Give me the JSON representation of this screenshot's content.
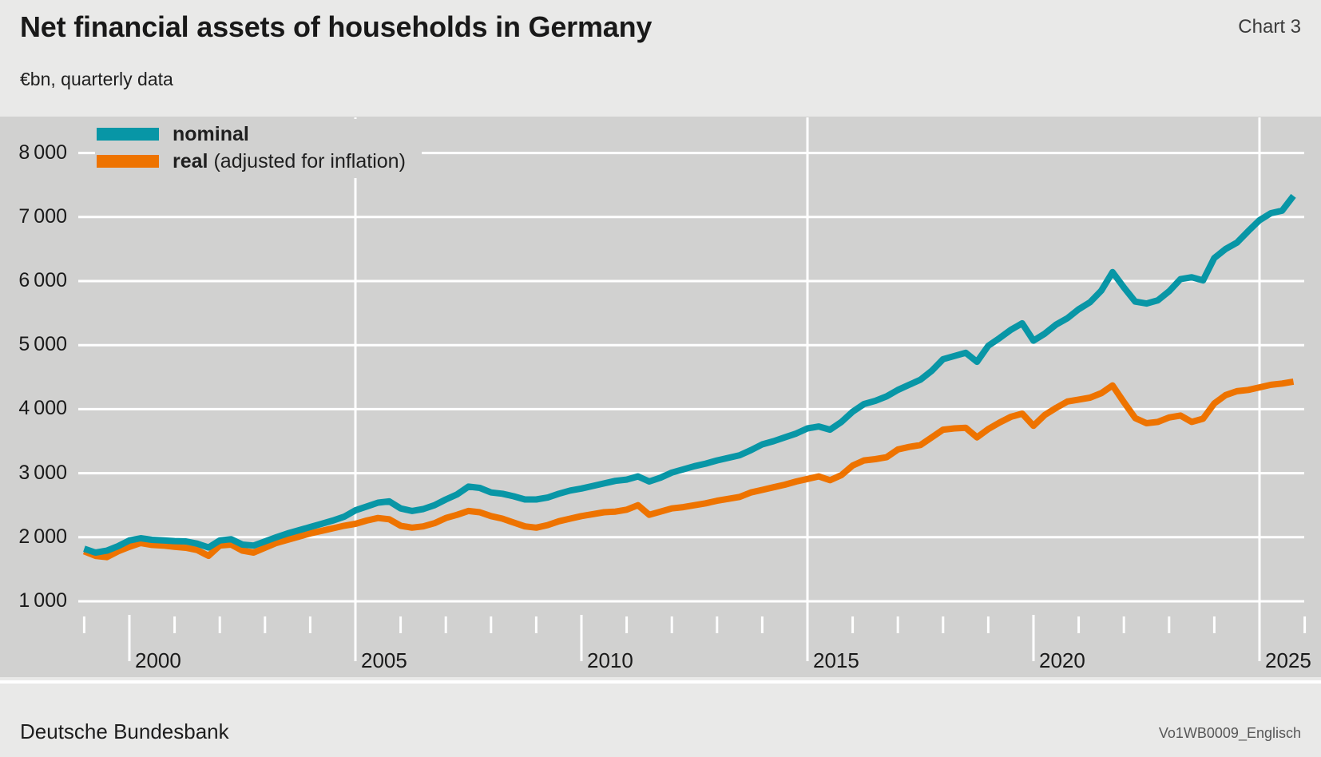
{
  "header": {
    "title": "Net financial assets of households in Germany",
    "chart_label": "Chart 3",
    "subtitle": "€bn, quarterly data"
  },
  "legend": {
    "items": [
      {
        "label": "nominal",
        "note": "",
        "color": "#0896a6"
      },
      {
        "label": "real",
        "note": "(adjusted for inflation)",
        "color": "#ee7300"
      }
    ]
  },
  "footer": {
    "source": "Deutsche Bundesbank",
    "code": "Vo1WB0009_Englisch"
  },
  "colors": {
    "page_background": "#e9e9e8",
    "plot_background": "#d1d1d0",
    "gridline": "#ffffff",
    "text": "#1a1a1a",
    "nominal_line": "#0896a6",
    "real_line": "#ee7300"
  },
  "chart_data": {
    "type": "line",
    "title": "Net financial assets of households in Germany",
    "ylabel": "€bn",
    "x_axis": {
      "unit": "year, quarterly data",
      "start": 1999.0,
      "step": 0.25,
      "tick_year_first": 1999,
      "tick_year_last": 2026,
      "labeled_years": [
        2000,
        2005,
        2010,
        2015,
        2020,
        2025
      ],
      "vertical_gridline_years": [
        2005,
        2015,
        2025
      ]
    },
    "y_axis": {
      "min": 1000,
      "max": 8000,
      "gridline_values": [
        1000,
        2000,
        3000,
        4000,
        5000,
        6000,
        7000,
        8000
      ],
      "grid": "on"
    },
    "legend_position": "top-left-inside",
    "series": [
      {
        "name": "nominal",
        "color": "#0896a6",
        "values": [
          1820,
          1760,
          1790,
          1860,
          1950,
          1985,
          1960,
          1950,
          1940,
          1935,
          1900,
          1840,
          1950,
          1970,
          1885,
          1870,
          1935,
          2000,
          2060,
          2110,
          2160,
          2210,
          2260,
          2320,
          2420,
          2480,
          2540,
          2560,
          2450,
          2410,
          2440,
          2500,
          2590,
          2670,
          2790,
          2770,
          2700,
          2680,
          2640,
          2590,
          2590,
          2620,
          2680,
          2730,
          2760,
          2800,
          2840,
          2880,
          2900,
          2950,
          2870,
          2930,
          3010,
          3060,
          3110,
          3150,
          3200,
          3240,
          3280,
          3360,
          3450,
          3500,
          3560,
          3620,
          3700,
          3730,
          3680,
          3800,
          3960,
          4080,
          4130,
          4200,
          4300,
          4380,
          4460,
          4600,
          4780,
          4830,
          4880,
          4740,
          4990,
          5110,
          5240,
          5340,
          5070,
          5180,
          5320,
          5420,
          5560,
          5670,
          5850,
          6140,
          5900,
          5680,
          5650,
          5700,
          5840,
          6030,
          6060,
          6010,
          6360,
          6500,
          6600,
          6780,
          6950,
          7060,
          7100,
          7330
        ]
      },
      {
        "name": "real (adjusted for inflation)",
        "color": "#ee7300",
        "values": [
          1780,
          1710,
          1690,
          1780,
          1850,
          1910,
          1880,
          1870,
          1850,
          1835,
          1800,
          1710,
          1870,
          1885,
          1790,
          1760,
          1835,
          1910,
          1960,
          2010,
          2060,
          2100,
          2140,
          2180,
          2210,
          2260,
          2300,
          2280,
          2180,
          2150,
          2170,
          2220,
          2300,
          2350,
          2410,
          2390,
          2330,
          2290,
          2230,
          2170,
          2150,
          2190,
          2250,
          2290,
          2330,
          2360,
          2390,
          2400,
          2430,
          2500,
          2350,
          2400,
          2450,
          2470,
          2500,
          2530,
          2570,
          2600,
          2630,
          2700,
          2740,
          2780,
          2820,
          2870,
          2910,
          2950,
          2890,
          2970,
          3120,
          3200,
          3220,
          3250,
          3370,
          3410,
          3440,
          3560,
          3680,
          3700,
          3710,
          3560,
          3690,
          3790,
          3880,
          3930,
          3740,
          3910,
          4020,
          4120,
          4150,
          4180,
          4250,
          4370,
          4110,
          3860,
          3780,
          3800,
          3870,
          3900,
          3800,
          3850,
          4090,
          4220,
          4280,
          4300,
          4340,
          4380,
          4400,
          4430
        ]
      }
    ]
  }
}
